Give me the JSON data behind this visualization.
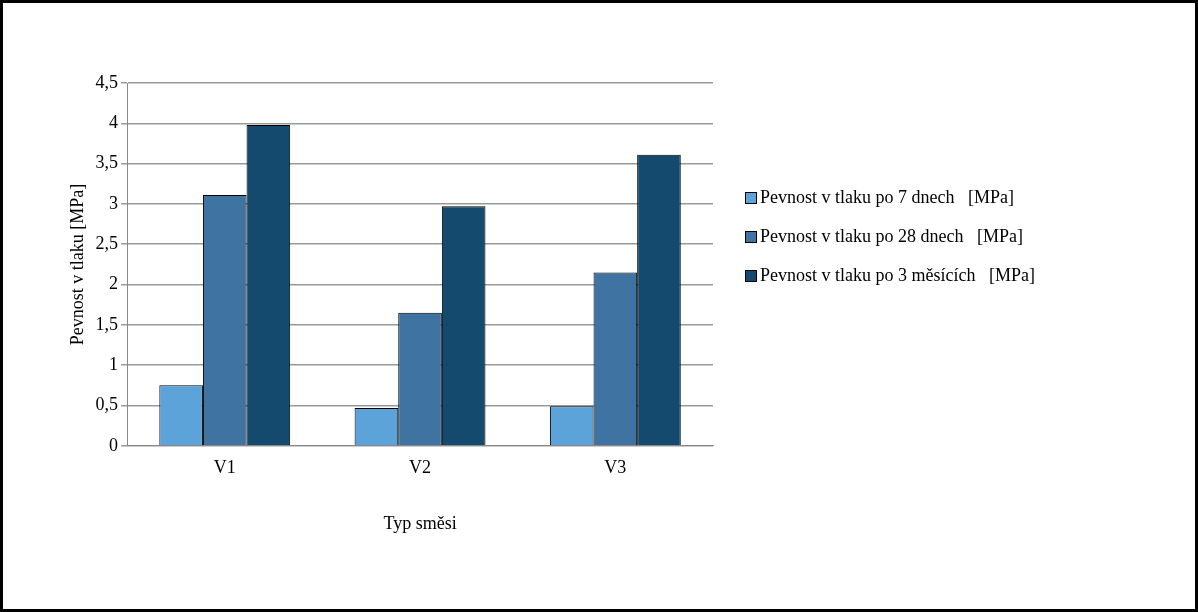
{
  "chart_data": {
    "type": "bar",
    "xlabel": "Typ směsi",
    "ylabel": "Pevnost v tlaku [MPa]",
    "categories": [
      "V1",
      "V2",
      "V3"
    ],
    "series": [
      {
        "name": "Pevnost v tlaku po 7 dnech   [MPa]",
        "color": "#5ba3d9",
        "values": [
          0.75,
          0.47,
          0.49
        ]
      },
      {
        "name": "Pevnost v tlaku po 28 dnech   [MPa]",
        "color": "#3f73a1",
        "values": [
          3.11,
          1.65,
          2.15
        ]
      },
      {
        "name": "Pevnost v tlaku po 3 měsících   [MPa]",
        "color": "#134a6e",
        "values": [
          3.98,
          2.97,
          3.61
        ]
      }
    ],
    "ylim": [
      0,
      4.5
    ],
    "yticks": [
      {
        "value": 0,
        "label": "0"
      },
      {
        "value": 0.5,
        "label": "0,5"
      },
      {
        "value": 1,
        "label": "1"
      },
      {
        "value": 1.5,
        "label": "1,5"
      },
      {
        "value": 2,
        "label": "2"
      },
      {
        "value": 2.5,
        "label": "2,5"
      },
      {
        "value": 3,
        "label": "3"
      },
      {
        "value": 3.5,
        "label": "3,5"
      },
      {
        "value": 4,
        "label": "4"
      },
      {
        "value": 4.5,
        "label": "4,5"
      }
    ],
    "grid": "y",
    "legend": "right"
  }
}
